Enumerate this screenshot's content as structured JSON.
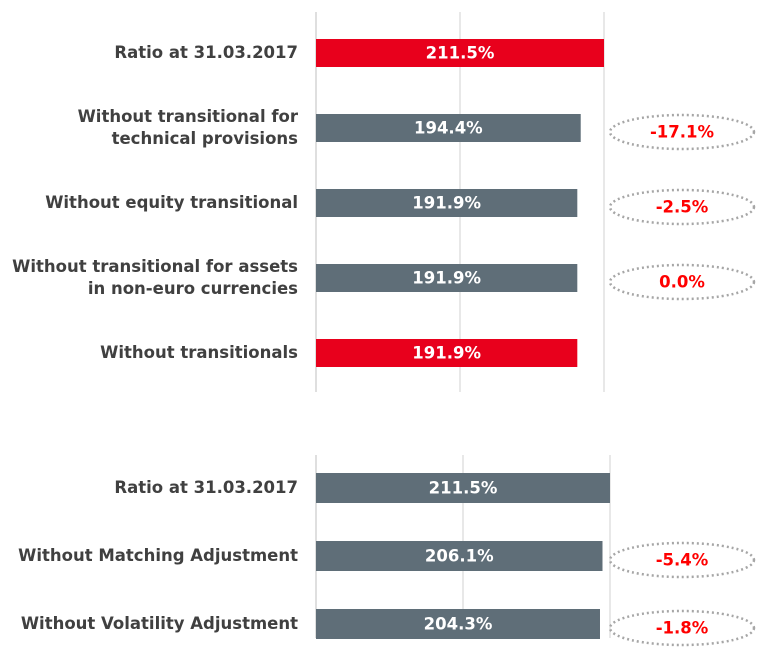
{
  "chart_data": [
    {
      "type": "bar",
      "orientation": "horizontal",
      "categories": [
        [
          "Ratio at 31.03.2017"
        ],
        [
          "Without transitional for",
          "technical provisions"
        ],
        [
          "Without equity transitional"
        ],
        [
          "Without transitional for assets",
          "in non-euro currencies"
        ],
        [
          "Without transitionals"
        ]
      ],
      "values": [
        211.5,
        194.4,
        191.9,
        191.9,
        191.9
      ],
      "value_labels": [
        "211.5%",
        "194.4%",
        "191.9%",
        "191.9%",
        "191.9%"
      ],
      "colors": [
        "#e8001c",
        "#5f6e78",
        "#5f6e78",
        "#5f6e78",
        "#e8001c"
      ],
      "annotations": [
        null,
        "-17.1%",
        "-2.5%",
        "0.0%",
        null
      ],
      "xlim": [
        0,
        211.5
      ],
      "grid": true
    },
    {
      "type": "bar",
      "orientation": "horizontal",
      "categories": [
        [
          "Ratio at 31.03.2017"
        ],
        [
          "Without Matching Adjustment"
        ],
        [
          "Without Volatility Adjustment"
        ]
      ],
      "values": [
        211.5,
        206.1,
        204.3
      ],
      "value_labels": [
        "211.5%",
        "206.1%",
        "204.3%"
      ],
      "colors": [
        "#5f6e78",
        "#5f6e78",
        "#5f6e78"
      ],
      "annotations": [
        null,
        "-5.4%",
        "-1.8%"
      ],
      "xlim": [
        0,
        211.5
      ],
      "grid": true
    }
  ]
}
